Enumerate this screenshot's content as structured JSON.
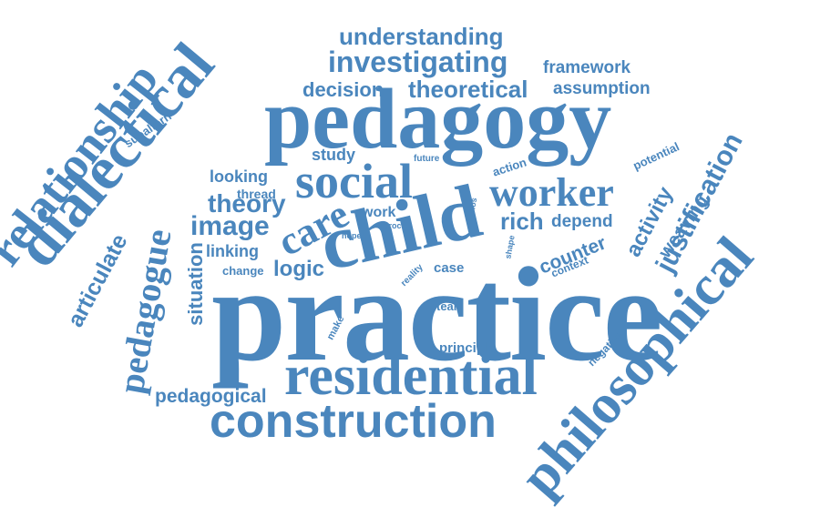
{
  "colors": {
    "word": "#4a86bd",
    "background": "#ffffff"
  },
  "words": {
    "practice": "practice",
    "pedagogy": "pedagogy",
    "child": "child",
    "residential": "residential",
    "construction": "construction",
    "philosophical": "philosophical",
    "dialectical": "dialectical",
    "relationship": "relationship",
    "social": "social",
    "worker": "worker",
    "care": "care",
    "investigating": "investigating",
    "understanding": "understanding",
    "theoretical": "theoretical",
    "decision": "decision",
    "framework": "framework",
    "assumption": "assumption",
    "justification": "justification",
    "pedagogue": "pedagogue",
    "image": "image",
    "theory": "theory",
    "logic": "logic",
    "articulate": "articulate",
    "situation": "situation",
    "pedagogical": "pedagogical",
    "rich": "rich",
    "depend": "depend",
    "counter": "counter",
    "activity": "activity",
    "weaving": "weaving",
    "study": "study",
    "looking": "looking",
    "thread": "thread",
    "linking": "linking",
    "change": "change",
    "work": "work",
    "case": "case",
    "team": "team",
    "principle": "principle",
    "subaltern": "subaltern",
    "potential": "potential",
    "action": "action",
    "context": "context",
    "negative": "negative",
    "future": "future",
    "hope": "hope",
    "proc": "proc",
    "mos": "mos",
    "shape": "shape",
    "reality": "reality",
    "make": "make"
  }
}
